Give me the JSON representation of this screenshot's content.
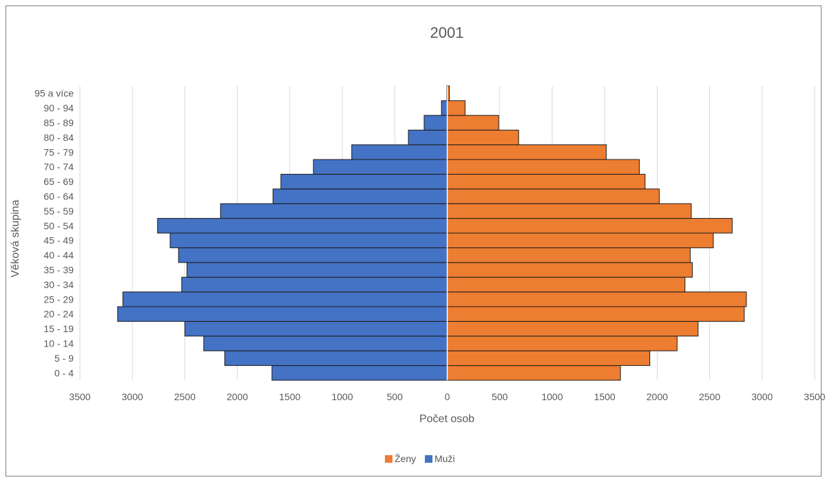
{
  "chart_data": {
    "type": "bar",
    "orientation": "horizontal",
    "title": "2001",
    "xlabel": "Počet osob",
    "ylabel": "Věková skupina",
    "xlim": [
      -3500,
      3500
    ],
    "xticks": [
      -3500,
      -3000,
      -2500,
      -2000,
      -1500,
      -1000,
      -500,
      0,
      500,
      1000,
      1500,
      2000,
      2500,
      3000,
      3500
    ],
    "xtick_labels": [
      "3500",
      "3000",
      "2500",
      "2000",
      "1500",
      "1000",
      "500",
      "0",
      "500",
      "1000",
      "1500",
      "2000",
      "2500",
      "3000",
      "3500"
    ],
    "grid": true,
    "legend_position": "bottom",
    "categories": [
      "0 - 4",
      "5 - 9",
      "10 - 14",
      "15 - 19",
      "20 - 24",
      "25 - 29",
      "30 - 34",
      "35 - 39",
      "40 - 44",
      "45 - 49",
      "50 - 54",
      "55 - 59",
      "60 - 64",
      "65 - 69",
      "70 - 74",
      "75 - 79",
      "80 - 84",
      "85 - 89",
      "90 - 94",
      "95 a více"
    ],
    "series": [
      {
        "name": "Ženy",
        "color": "#ed7d31",
        "values": [
          1650,
          1930,
          2190,
          2390,
          2830,
          2850,
          2265,
          2335,
          2315,
          2535,
          2715,
          2325,
          2020,
          1885,
          1830,
          1515,
          680,
          490,
          170,
          20
        ]
      },
      {
        "name": "Muži",
        "color": "#4472c4",
        "values": [
          1670,
          2120,
          2320,
          2500,
          3140,
          3090,
          2530,
          2480,
          2560,
          2640,
          2760,
          2160,
          1660,
          1585,
          1275,
          910,
          370,
          220,
          55,
          5
        ]
      }
    ]
  }
}
